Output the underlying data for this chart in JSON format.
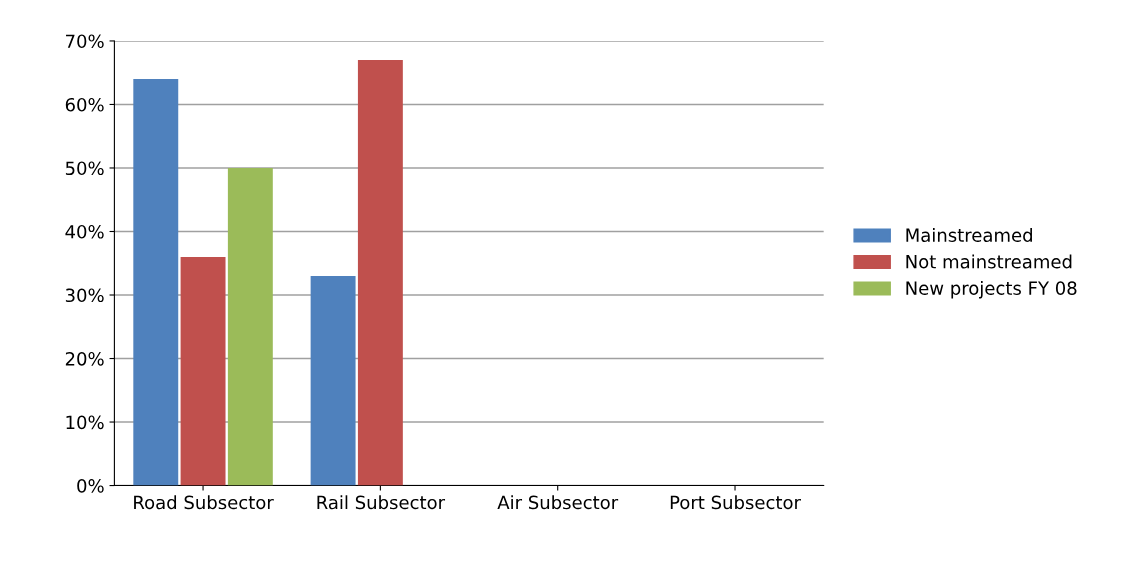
{
  "chart_data": {
    "type": "bar",
    "categories": [
      "Road Subsector",
      "Rail Subsector",
      "Air Subsector",
      "Port Subsector"
    ],
    "series": [
      {
        "name": "Mainstreamed",
        "color": "#4f81bd",
        "values": [
          64,
          33,
          0,
          0
        ]
      },
      {
        "name": "Not mainstreamed",
        "color": "#c0504d",
        "values": [
          36,
          67,
          0,
          0
        ]
      },
      {
        "name": "New projects FY 08",
        "color": "#9bbb59",
        "values": [
          50,
          0,
          0,
          0
        ]
      }
    ],
    "ylim": [
      0,
      70
    ],
    "yticks": [
      {
        "value": 0,
        "label": "0%"
      },
      {
        "value": 10,
        "label": "10%"
      },
      {
        "value": 20,
        "label": "20%"
      },
      {
        "value": 30,
        "label": "30%"
      },
      {
        "value": 40,
        "label": "40%"
      },
      {
        "value": 50,
        "label": "50%"
      },
      {
        "value": 60,
        "label": "60%"
      },
      {
        "value": 70,
        "label": "70%"
      }
    ],
    "grid": "y",
    "legend": "right"
  }
}
